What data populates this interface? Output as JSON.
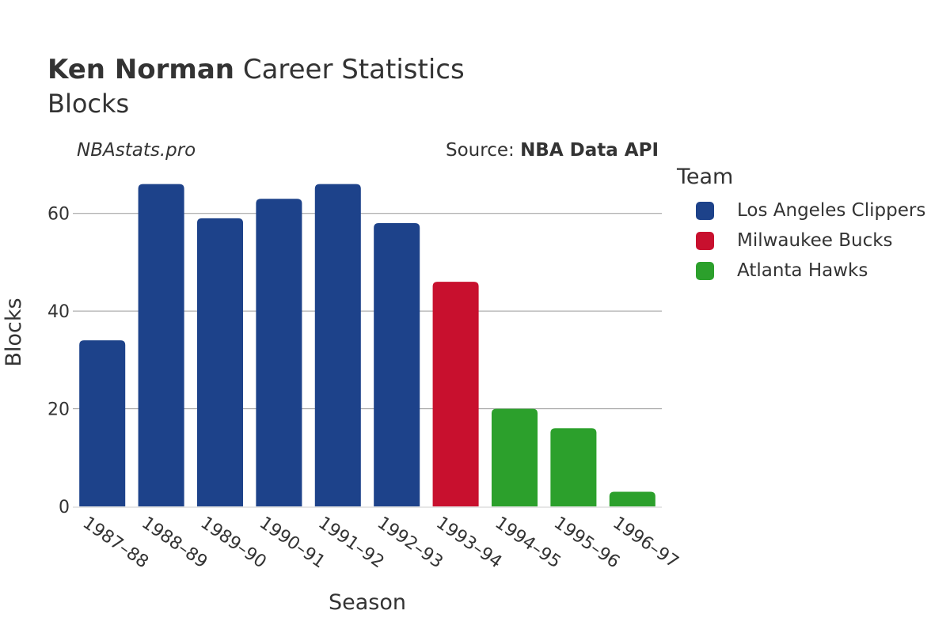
{
  "header": {
    "title_bold": "Ken Norman",
    "title_rest": "Career Statistics",
    "subtitle": "Blocks",
    "watermark": "NBAstats.pro",
    "source_prefix": "Source: ",
    "source_name": "NBA Data API"
  },
  "colors": {
    "Los Angeles Clippers": "#1d428a",
    "Milwaukee Bucks": "#c8102e",
    "Atlanta Hawks": "#2ca02c",
    "grid": "#9a9a9a",
    "text": "#333333"
  },
  "legend": {
    "title": "Team",
    "items": [
      {
        "label": "Los Angeles Clippers",
        "color": "#1d428a"
      },
      {
        "label": "Milwaukee Bucks",
        "color": "#c8102e"
      },
      {
        "label": "Atlanta Hawks",
        "color": "#2ca02c"
      }
    ]
  },
  "chart_data": {
    "type": "bar",
    "title": "Ken Norman Career Statistics",
    "subtitle": "Blocks",
    "xlabel": "Season",
    "ylabel": "Blocks",
    "ylim": [
      0,
      70
    ],
    "yticks": [
      0,
      20,
      40,
      60
    ],
    "grid": true,
    "legend_position": "right",
    "categories": [
      "1987–88",
      "1988–89",
      "1989–90",
      "1990–91",
      "1991–92",
      "1992–93",
      "1993–94",
      "1994–95",
      "1995–96",
      "1996–97"
    ],
    "values": [
      34,
      66,
      59,
      63,
      66,
      58,
      46,
      20,
      16,
      3
    ],
    "teams": [
      "Los Angeles Clippers",
      "Los Angeles Clippers",
      "Los Angeles Clippers",
      "Los Angeles Clippers",
      "Los Angeles Clippers",
      "Los Angeles Clippers",
      "Milwaukee Bucks",
      "Atlanta Hawks",
      "Atlanta Hawks",
      "Atlanta Hawks"
    ]
  }
}
